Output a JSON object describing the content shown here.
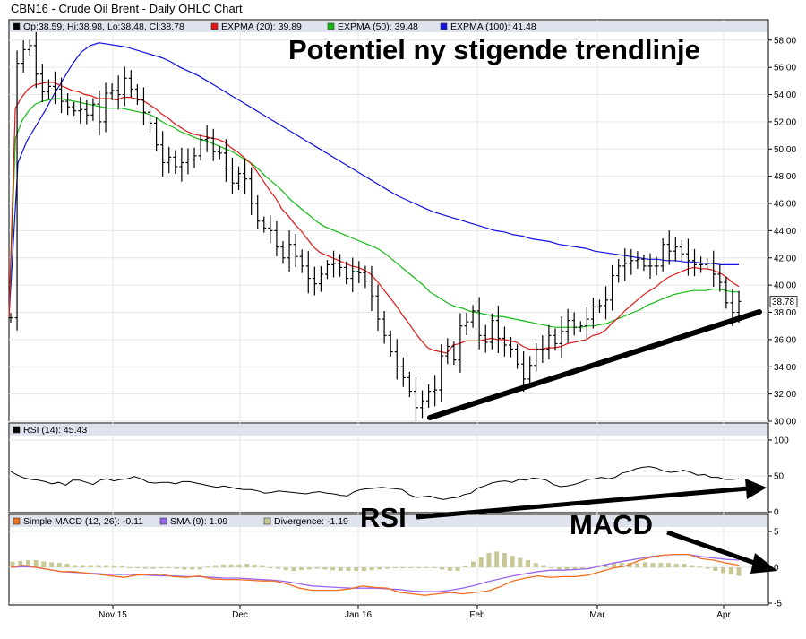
{
  "title": "CBN16 - Crude Oil Brent - Daily OHLC Chart",
  "annotation_text": "Potentiel ny stigende trendlinje",
  "rsi_label": "RSI",
  "macd_label": "MACD",
  "colors": {
    "ohlc": "#000000",
    "ema20": "#e01515",
    "ema50": "#11bb11",
    "ema100": "#1010e0",
    "macd": "#f07020",
    "sma": "#9966ee",
    "divergence": "#c8c896",
    "rsi": "#000000",
    "legend_bg": "#dfe3ee"
  },
  "chart_data": [
    {
      "type": "line",
      "subtype": "ohlc",
      "name": "price",
      "legend": [
        "Op:38.59, Hi:38.98, Lo:38.48, Cl:38.78",
        "EXPMA (20): 39.89",
        "EXPMA (50): 39.48",
        "EXPMA (100): 41.48"
      ],
      "last_close_label": "38.78",
      "x_tick_labels": [
        "Nov 15",
        "Dec",
        "Jan 16",
        "Feb",
        "Mar",
        "Apr"
      ],
      "y_tick_labels": [
        "30.00",
        "32.00",
        "34.00",
        "36.00",
        "38.00",
        "40.00",
        "42.00",
        "44.00",
        "46.00",
        "48.00",
        "50.00",
        "52.00",
        "54.00",
        "56.00",
        "58.00"
      ],
      "ylim": [
        30,
        59.5
      ],
      "close": [
        37.6,
        56.3,
        57.3,
        57.6,
        55.5,
        54.2,
        54.6,
        54.4,
        53.5,
        53.1,
        52.8,
        52.9,
        52.5,
        53.3,
        52.0,
        54.1,
        54.3,
        54.0,
        55.2,
        54.4,
        53.6,
        52.7,
        51.9,
        50.3,
        49.0,
        49.4,
        48.7,
        49.0,
        49.2,
        49.5,
        50.7,
        50.8,
        49.8,
        49.7,
        48.6,
        47.5,
        48.2,
        47.8,
        46.0,
        44.7,
        44.2,
        44.0,
        42.8,
        42.0,
        43.0,
        42.1,
        41.4,
        40.5,
        40.1,
        40.8,
        41.5,
        41.6,
        41.3,
        40.5,
        41.0,
        40.9,
        40.3,
        39.2,
        37.5,
        36.3,
        35.1,
        34.0,
        33.2,
        32.2,
        31.0,
        31.5,
        32.2,
        32.3,
        34.8,
        35.5,
        34.5,
        37.0,
        37.3,
        38.1,
        36.3,
        35.8,
        37.4,
        36.1,
        35.6,
        35.3,
        34.2,
        33.1,
        34.1,
        35.3,
        35.3,
        36.3,
        35.7,
        36.6,
        37.4,
        36.9,
        37.0,
        37.5,
        38.4,
        38.5,
        38.9,
        40.7,
        41.4,
        41.6,
        41.8,
        41.9,
        41.4,
        41.4,
        41.4,
        43.0,
        42.5,
        42.8,
        42.3,
        41.8,
        41.5,
        41.5,
        41.6,
        40.8,
        40.2,
        38.7,
        38.0,
        38.8
      ],
      "ema20": [
        37.6,
        53.0,
        53.8,
        54.4,
        54.7,
        54.8,
        54.9,
        54.9,
        54.7,
        54.5,
        54.3,
        54.2,
        54.0,
        53.9,
        53.7,
        53.7,
        53.7,
        53.6,
        53.8,
        53.8,
        53.7,
        53.6,
        53.3,
        53.0,
        52.6,
        52.3,
        51.9,
        51.6,
        51.3,
        51.1,
        51.0,
        50.9,
        50.8,
        50.7,
        50.5,
        50.1,
        49.8,
        49.4,
        49.0,
        48.4,
        47.7,
        47.0,
        46.4,
        45.6,
        45.1,
        44.5,
        44.0,
        43.4,
        42.8,
        42.4,
        42.2,
        42.0,
        41.8,
        41.6,
        41.4,
        41.3,
        41.1,
        40.8,
        40.3,
        39.7,
        39.1,
        38.5,
        37.8,
        37.2,
        36.5,
        35.9,
        35.4,
        35.2,
        35.1,
        35.0,
        35.6,
        35.7,
        35.9,
        35.9,
        35.9,
        36.0,
        36.1,
        36.0,
        36.0,
        35.9,
        35.8,
        35.5,
        35.3,
        35.3,
        35.3,
        35.4,
        35.4,
        35.5,
        35.7,
        35.8,
        35.9,
        36.0,
        36.3,
        36.4,
        36.7,
        37.2,
        37.6,
        38.1,
        38.5,
        38.9,
        39.3,
        39.6,
        39.9,
        40.3,
        40.6,
        40.8,
        41.0,
        41.2,
        41.3,
        41.2,
        41.2,
        41.1,
        40.9,
        40.6,
        40.2,
        39.9
      ],
      "ema50": [
        37.6,
        50.8,
        52.1,
        52.8,
        53.3,
        53.5,
        53.6,
        53.7,
        53.7,
        53.6,
        53.5,
        53.4,
        53.3,
        53.2,
        53.1,
        53.0,
        53.0,
        53.0,
        52.9,
        52.8,
        52.7,
        52.6,
        52.4,
        52.1,
        51.8,
        51.6,
        51.3,
        51.1,
        50.9,
        50.7,
        50.6,
        50.4,
        50.2,
        50.0,
        49.8,
        49.5,
        49.2,
        48.9,
        48.5,
        48.0,
        47.6,
        47.2,
        46.7,
        46.2,
        45.8,
        45.4,
        45.0,
        44.6,
        44.3,
        44.1,
        43.9,
        43.7,
        43.5,
        43.3,
        43.1,
        42.9,
        42.7,
        42.4,
        42.0,
        41.6,
        41.2,
        40.8,
        40.4,
        40.0,
        39.5,
        39.2,
        38.9,
        38.6,
        38.4,
        38.3,
        38.1,
        38.0,
        37.9,
        37.8,
        37.7,
        37.7,
        37.6,
        37.5,
        37.4,
        37.3,
        37.2,
        37.1,
        37.0,
        36.9,
        36.9,
        36.9,
        36.9,
        36.9,
        37.0,
        37.0,
        37.1,
        37.2,
        37.4,
        37.6,
        37.8,
        38.0,
        38.2,
        38.5,
        38.7,
        38.9,
        39.1,
        39.3,
        39.4,
        39.5,
        39.6,
        39.6,
        39.6,
        39.7,
        39.7,
        39.6,
        39.5,
        39.5
      ],
      "ema100": [
        37.6,
        49.0,
        50.6,
        51.7,
        52.8,
        54.0,
        55.1,
        56.2,
        57.1,
        57.6,
        57.8,
        57.7,
        57.6,
        57.5,
        57.3,
        57.1,
        56.9,
        56.7,
        56.4,
        56.0,
        55.7,
        55.4,
        55.0,
        54.6,
        54.2,
        53.8,
        53.4,
        53.0,
        52.6,
        52.2,
        51.8,
        51.4,
        51.0,
        50.6,
        50.2,
        49.8,
        49.4,
        49.0,
        48.6,
        48.2,
        47.8,
        47.4,
        47.0,
        46.6,
        46.3,
        46.0,
        45.7,
        45.4,
        45.2,
        45.0,
        44.8,
        44.6,
        44.4,
        44.2,
        44.0,
        43.9,
        43.7,
        43.6,
        43.4,
        43.3,
        43.2,
        43.0,
        42.9,
        42.8,
        42.7,
        42.5,
        42.4,
        42.3,
        42.2,
        42.1,
        42.0,
        41.9,
        41.9,
        41.8,
        41.8,
        41.7,
        41.7,
        41.6,
        41.6,
        41.5,
        41.5,
        41.5
      ]
    },
    {
      "type": "line",
      "name": "RSI (14)",
      "legend": [
        "RSI (14): 45.43"
      ],
      "y_tick_labels": [
        "0",
        "50",
        "100"
      ],
      "ylim": [
        0,
        100
      ],
      "values": [
        56,
        51,
        47,
        45,
        44,
        42,
        39,
        41,
        37,
        44,
        44,
        41,
        38,
        44,
        46,
        43,
        45,
        46,
        49,
        46,
        41,
        40,
        41,
        41,
        39,
        42,
        42,
        40,
        38,
        36,
        34,
        36,
        34,
        32,
        31,
        31,
        29,
        26,
        27,
        29,
        28,
        27,
        26,
        25,
        27,
        28,
        26,
        25,
        23,
        22,
        28,
        31,
        32,
        33,
        34,
        33,
        32,
        31,
        24,
        20,
        21,
        22,
        19,
        17,
        19,
        20,
        24,
        26,
        33,
        36,
        40,
        42,
        43,
        41,
        45,
        44,
        47,
        46,
        44,
        38,
        35,
        36,
        38,
        41,
        45,
        46,
        48,
        46,
        48,
        54,
        56,
        60,
        62,
        63,
        61,
        57,
        55,
        56,
        58,
        55,
        51,
        52,
        48,
        48,
        45,
        45,
        46
      ]
    },
    {
      "type": "line",
      "name": "Simple MACD (12, 26)",
      "legend": [
        "Simple MACD (12, 26): -0.11",
        "SMA (9): 1.09",
        "Divergence: -1.19"
      ],
      "y_tick_labels": [
        "5",
        "0",
        "-5"
      ],
      "ylim": [
        -5,
        5
      ],
      "macd": [
        0.0,
        0.3,
        0.0,
        -0.3,
        -0.6,
        -0.6,
        -0.8,
        -1.0,
        -1.2,
        -1.4,
        -1.1,
        -1.0,
        -1.0,
        -1.3,
        -1.4,
        -1.2,
        -1.6,
        -1.7,
        -1.7,
        -1.8,
        -1.9,
        -1.9,
        -2.3,
        -2.9,
        -3.2,
        -3.2,
        -3.2,
        -3.0,
        -2.6,
        -2.8,
        -2.9,
        -3.5,
        -3.7,
        -3.9,
        -3.7,
        -3.5,
        -3.7,
        -3.5,
        -3.3,
        -2.7,
        -1.9,
        -1.5,
        -1.2,
        -1.4,
        -1.3,
        -1.3,
        -1.1,
        -0.6,
        -0.1,
        0.2,
        0.9,
        1.4,
        1.7,
        1.8,
        1.8,
        1.2,
        1.0,
        0.6,
        0.3
      ],
      "sma": [
        0.0,
        0.1,
        0.0,
        -0.3,
        -0.6,
        -0.7,
        -0.8,
        -0.9,
        -1.0,
        -1.0,
        -1.0,
        -1.1,
        -1.2,
        -1.2,
        -1.3,
        -1.3,
        -1.4,
        -1.5,
        -1.5,
        -1.6,
        -1.7,
        -1.8,
        -2.0,
        -2.3,
        -2.6,
        -2.7,
        -2.8,
        -2.9,
        -2.9,
        -2.9,
        -3.0,
        -3.1,
        -3.3,
        -3.4,
        -3.4,
        -3.2,
        -2.9,
        -2.5,
        -2.0,
        -1.6,
        -1.2,
        -0.9,
        -0.6,
        -0.4,
        -0.4,
        -0.3,
        -0.2,
        0.2,
        0.6,
        0.9,
        1.2,
        1.5,
        1.7,
        1.8,
        1.8,
        1.5,
        1.3,
        1.1,
        1.0
      ],
      "divergence": [
        0.8,
        0.9,
        1.0,
        1.0,
        0.8,
        0.7,
        0.6,
        0.5,
        0.3,
        0.3,
        0.3,
        0.3,
        0.3,
        0.2,
        0.2,
        0.0,
        -0.1,
        -0.2,
        -0.2,
        -0.1,
        -0.1,
        -0.2,
        -0.3,
        -0.3,
        -0.3,
        0.1,
        0.3,
        0.4,
        0.4,
        0.4,
        0.5,
        0.4,
        0.3,
        0.0,
        -0.2,
        -0.4,
        -0.5,
        -0.4,
        -0.3,
        -0.2,
        -0.3,
        -0.4,
        -0.5,
        -0.5,
        -0.5,
        -0.5,
        -0.4,
        -0.3,
        -0.2,
        -0.1,
        -0.1,
        -0.1,
        -0.1,
        -0.1,
        -0.1,
        -0.3,
        -0.5,
        -0.5,
        0.2,
        0.8,
        1.4,
        2.0,
        2.2,
        2.0,
        1.6,
        1.3,
        1.0,
        0.6,
        0.3,
        -0.1,
        -0.3,
        -0.4,
        -0.4,
        -0.2,
        0.0,
        0.3,
        0.5,
        0.6,
        0.6,
        0.6,
        0.6,
        0.7,
        0.6,
        0.6,
        0.6,
        0.5,
        0.5,
        0.3,
        0.1,
        -0.2,
        -0.5,
        -0.8,
        -1.0,
        -1.2
      ]
    }
  ]
}
